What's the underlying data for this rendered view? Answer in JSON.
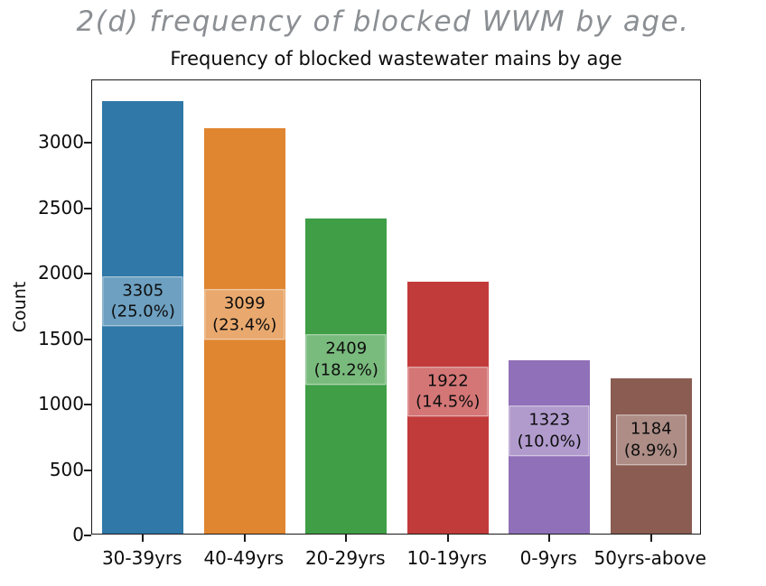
{
  "caption": {
    "text": "2(d) frequency of blocked WWM by age.",
    "color": "#8b8f93"
  },
  "chart_data": {
    "type": "bar",
    "title": "Frequency of blocked wastewater mains by age",
    "xlabel": "",
    "ylabel": "Count",
    "categories": [
      "30-39yrs",
      "40-49yrs",
      "20-29yrs",
      "10-19yrs",
      "0-9yrs",
      "50yrs-above"
    ],
    "values": [
      3305,
      3099,
      2409,
      1922,
      1323,
      1184
    ],
    "percent_labels": [
      "(25.0%)",
      "(23.4%)",
      "(18.2%)",
      "(14.5%)",
      "(10.0%)",
      "(8.9%)"
    ],
    "bar_colors": [
      "#2F78A7",
      "#E08530",
      "#3F9E46",
      "#C23B3B",
      "#9070B8",
      "#8A5C52"
    ],
    "yticks": [
      0,
      500,
      1000,
      1500,
      2000,
      2500,
      3000
    ],
    "ylim": [
      0,
      3478
    ],
    "grid": false,
    "legend": null,
    "annotation_box": {
      "fill": "rgba(255,255,255,0.30)",
      "edge": "rgba(255,255,255,0.55)"
    }
  }
}
